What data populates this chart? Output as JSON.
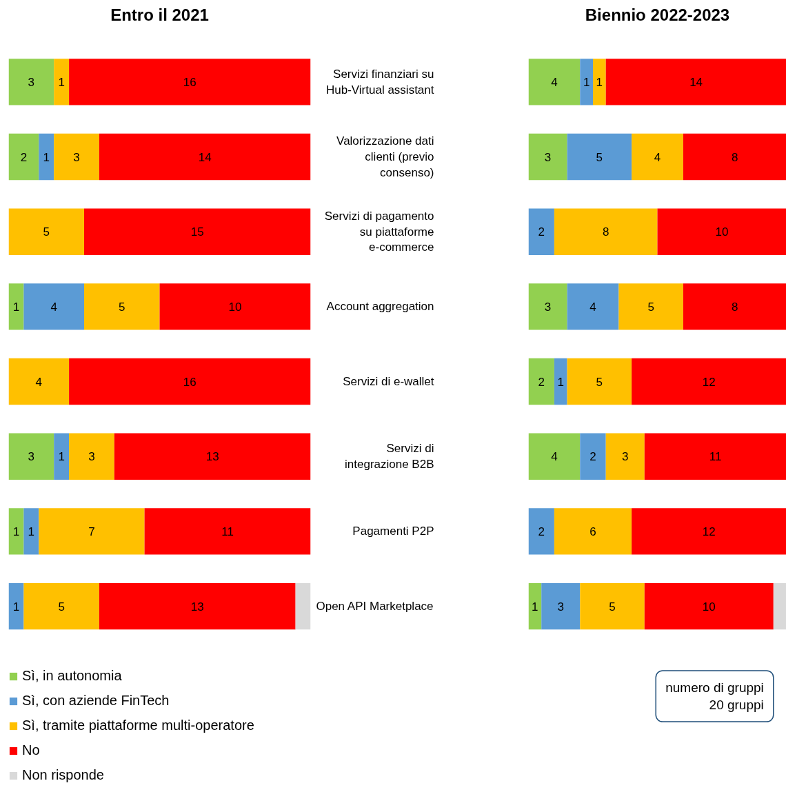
{
  "chart_data": [
    {
      "type": "bar",
      "title": "Entro il 2021",
      "orientation": "horizontal",
      "stacked": true,
      "data_labels": true,
      "legend": "bottom",
      "tick_labels": false,
      "xlim": [
        0,
        20
      ],
      "categories": [
        "Servizi finanziari su Hub-Virtual assistant",
        "Valorizzazione dati clienti (previo consenso)",
        "Servizi di pagamento su piattaforme e-commerce",
        "Account aggregation",
        "Servizi di e-wallet",
        "Servizi di integrazione B2B",
        "Pagamenti P2P",
        "Open API Marketplace"
      ],
      "series": [
        {
          "name": "Sì, in autonomia",
          "color": "#92d050",
          "values": [
            3,
            2,
            null,
            1,
            null,
            3,
            1,
            null
          ]
        },
        {
          "name": "Sì, con aziende FinTech",
          "color": "#5b9bd5",
          "values": [
            null,
            1,
            null,
            4,
            null,
            1,
            1,
            1
          ]
        },
        {
          "name": "Sì, tramite piattaforme multi-operatore",
          "color": "#ffc000",
          "values": [
            1,
            3,
            5,
            5,
            4,
            3,
            7,
            5
          ]
        },
        {
          "name": "No",
          "color": "#ff0000",
          "values": [
            16,
            14,
            15,
            10,
            16,
            13,
            11,
            13
          ]
        },
        {
          "name": "Non risponde",
          "color": "#d9d9d9",
          "values": [
            null,
            null,
            null,
            null,
            null,
            null,
            null,
            1
          ],
          "value_labels": [
            null,
            null,
            null,
            null,
            null,
            null,
            null,
            null
          ]
        }
      ]
    },
    {
      "type": "bar",
      "title": "Biennio 2022-2023",
      "orientation": "horizontal",
      "stacked": true,
      "data_labels": true,
      "tick_labels": "y",
      "xlim": [
        0,
        20
      ],
      "annotations": [
        "numero di gruppi\n20 gruppi"
      ],
      "categories": [
        "Servizi finanziari su Hub-Virtual assistant",
        "Valorizzazione dati clienti (previo consenso)",
        "Servizi di pagamento su piattaforme e-commerce",
        "Account aggregation",
        "Servizi di e-wallet",
        "Servizi di integrazione B2B",
        "Pagamenti P2P",
        "Open API Marketplace"
      ],
      "series": [
        {
          "color": "#92d050",
          "values": [
            4,
            3,
            null,
            3,
            2,
            4,
            null,
            1
          ]
        },
        {
          "color": "#5b9bd5",
          "values": [
            1,
            5,
            2,
            4,
            1,
            2,
            2,
            3
          ]
        },
        {
          "color": "#ffc000",
          "values": [
            1,
            4,
            8,
            5,
            5,
            3,
            6,
            5
          ]
        },
        {
          "color": "#ff0000",
          "values": [
            14,
            8,
            10,
            8,
            12,
            11,
            12,
            10
          ]
        },
        {
          "color": "#d9d9d9",
          "values": [
            null,
            null,
            null,
            null,
            null,
            null,
            null,
            1
          ],
          "value_labels": [
            null,
            null,
            null,
            null,
            null,
            null,
            null,
            null
          ]
        }
      ]
    }
  ]
}
